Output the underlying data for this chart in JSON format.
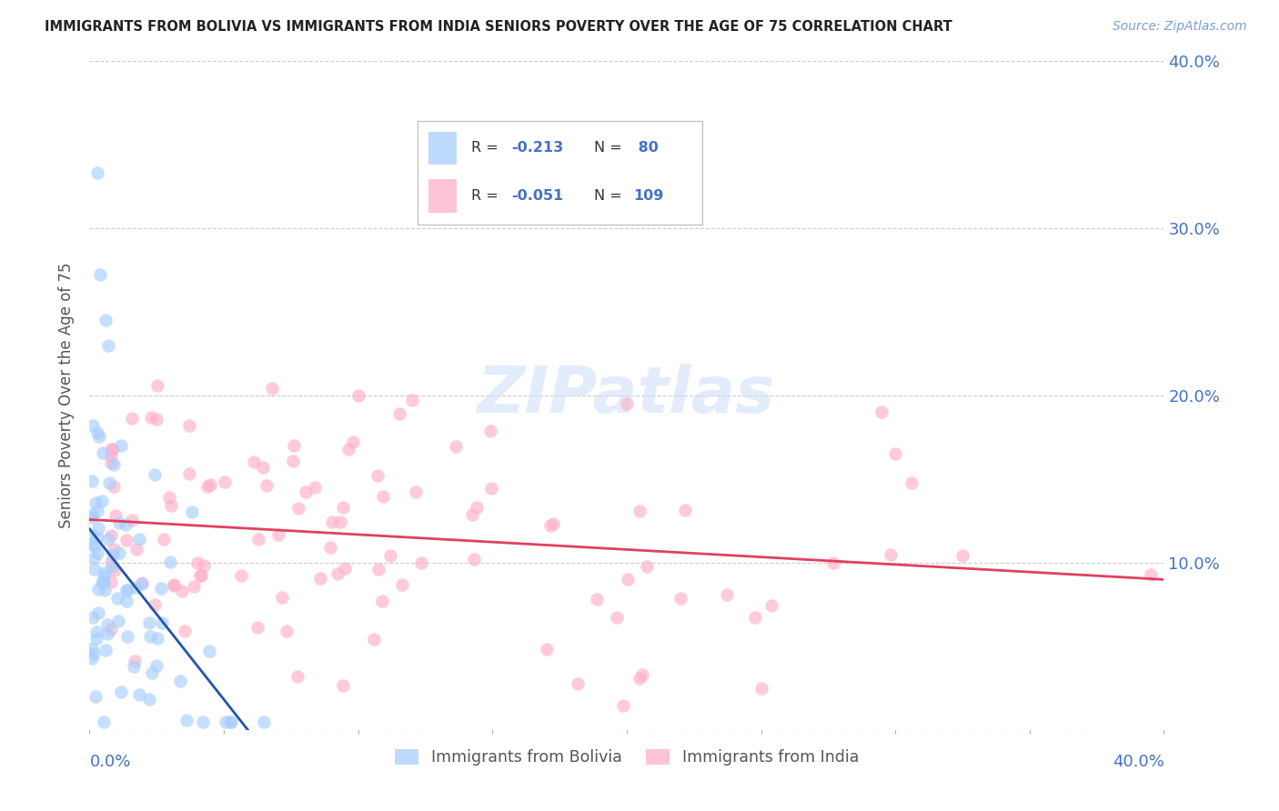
{
  "title": "IMMIGRANTS FROM BOLIVIA VS IMMIGRANTS FROM INDIA SENIORS POVERTY OVER THE AGE OF 75 CORRELATION CHART",
  "source": "Source: ZipAtlas.com",
  "ylabel": "Seniors Poverty Over the Age of 75",
  "xlim": [
    0.0,
    0.4
  ],
  "ylim": [
    0.0,
    0.4
  ],
  "ytick_vals": [
    0.0,
    0.1,
    0.2,
    0.3,
    0.4
  ],
  "ytick_labels_right": [
    "",
    "10.0%",
    "20.0%",
    "30.0%",
    "40.0%"
  ],
  "bolivia_color": "#A8CEFF",
  "india_color": "#FFB0C8",
  "bolivia_line_color": "#2255AA",
  "india_line_color": "#E04060",
  "legend_label_bolivia": "Immigrants from Bolivia",
  "legend_label_india": "Immigrants from India",
  "watermark": "ZIPatlas",
  "background_color": "#FFFFFF",
  "title_color": "#222222",
  "axis_label_color": "#4472C4",
  "legend_R_color": "#4472C4",
  "legend_N_color": "#4472C4",
  "bolivia_R": -0.213,
  "bolivia_N": 80,
  "india_R": -0.051,
  "india_N": 109
}
